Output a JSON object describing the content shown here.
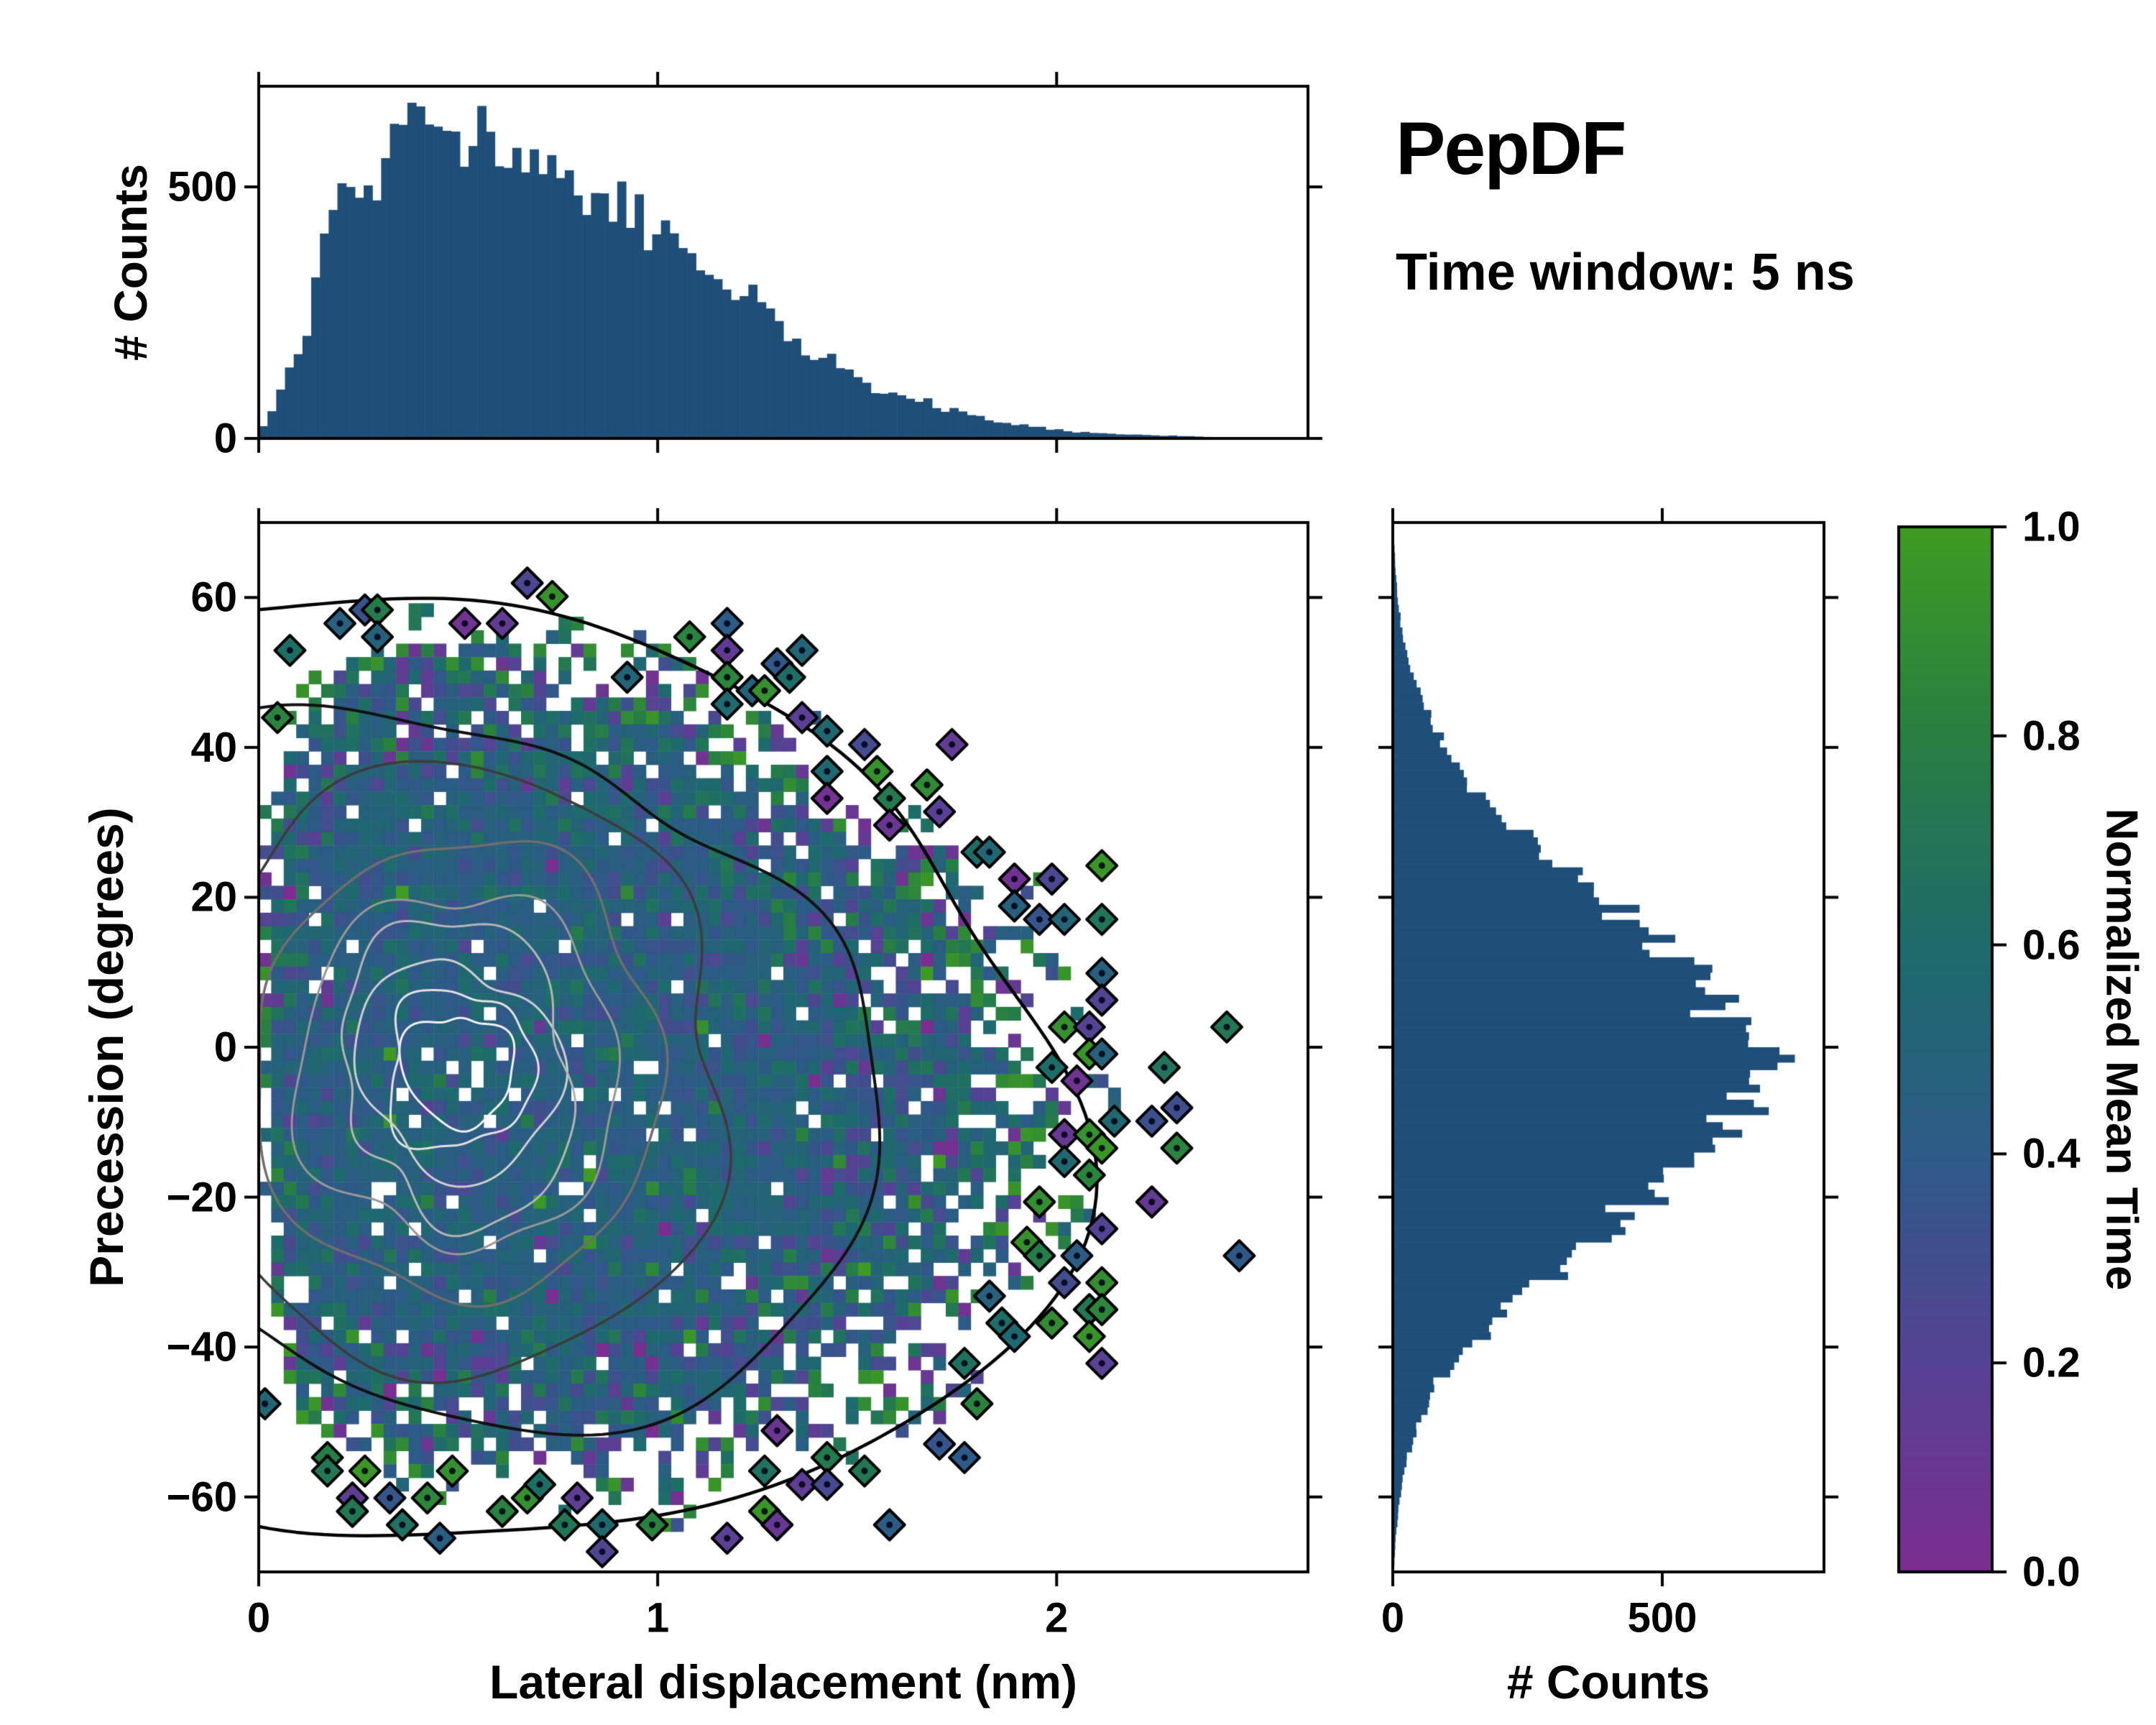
{
  "title": {
    "text": "PepDF",
    "subtitle": "Time window: 5 ns"
  },
  "colors": {
    "background": "#ffffff",
    "bar": "#1f4e79",
    "spine": "#000000"
  },
  "colormap": {
    "label": "Normalized Mean Time",
    "ticks": [
      "0.0",
      "0.2",
      "0.4",
      "0.6",
      "0.8",
      "1.0"
    ],
    "stops": [
      {
        "t": 0.0,
        "c": "#7b2d90"
      },
      {
        "t": 0.2,
        "c": "#564294"
      },
      {
        "t": 0.4,
        "c": "#2d5a87"
      },
      {
        "t": 0.6,
        "c": "#1d6b6b"
      },
      {
        "t": 0.8,
        "c": "#277f42"
      },
      {
        "t": 1.0,
        "c": "#3f9b22"
      }
    ]
  },
  "chart_data": [
    {
      "type": "bar",
      "name": "lateral-displacement-marginal-histogram",
      "orientation": "vertical",
      "ylabel": "# Counts",
      "xlim": [
        0,
        2.63
      ],
      "ylim": [
        0,
        700
      ],
      "yticks": [
        0,
        500
      ],
      "xticks": [
        0,
        1,
        2
      ],
      "bins": 120,
      "peak": 660,
      "envelope": [
        [
          0,
          10
        ],
        [
          0.05,
          80
        ],
        [
          0.1,
          185
        ],
        [
          0.15,
          310
        ],
        [
          0.2,
          430
        ],
        [
          0.25,
          515
        ],
        [
          0.3,
          565
        ],
        [
          0.35,
          610
        ],
        [
          0.42,
          660
        ],
        [
          0.5,
          625
        ],
        [
          0.6,
          575
        ],
        [
          0.7,
          550
        ],
        [
          0.8,
          525
        ],
        [
          0.9,
          490
        ],
        [
          1.0,
          445
        ],
        [
          1.1,
          370
        ],
        [
          1.2,
          285
        ],
        [
          1.3,
          215
        ],
        [
          1.4,
          160
        ],
        [
          1.5,
          115
        ],
        [
          1.6,
          85
        ],
        [
          1.7,
          62
        ],
        [
          1.8,
          45
        ],
        [
          1.9,
          26
        ],
        [
          2.0,
          17
        ],
        [
          2.1,
          11
        ],
        [
          2.2,
          7
        ],
        [
          2.3,
          5
        ],
        [
          2.4,
          3
        ],
        [
          2.5,
          2
        ],
        [
          2.63,
          1
        ]
      ]
    },
    {
      "type": "heatmap",
      "name": "precession-vs-lateral-displacement",
      "xlabel": "Lateral displacement (nm)",
      "ylabel": "Precession (degrees)",
      "xlim": [
        0,
        2.63
      ],
      "ylim": [
        -70,
        70
      ],
      "xticks": [
        0,
        1,
        2
      ],
      "yticks": [
        -60,
        -40,
        -20,
        0,
        20,
        40,
        60
      ],
      "grid": [
        84,
        78
      ],
      "peak_bin_count": 36,
      "mean_value": 0.46,
      "value_meaning": "normalized mean time, mapped through colormap 0-1",
      "contours": {
        "center": [
          0.5,
          -3
        ],
        "levels": [
          {
            "rx": 0.13,
            "ry": 8,
            "amp": 0.18,
            "lw": 3,
            "color": "#f2f2f2"
          },
          {
            "rx": 0.18,
            "ry": 11,
            "amp": 0.17,
            "lw": 3,
            "color": "#e2e2e2"
          },
          {
            "rx": 0.24,
            "ry": 15,
            "amp": 0.16,
            "lw": 3,
            "color": "#cfcfcf"
          },
          {
            "rx": 0.31,
            "ry": 19,
            "amp": 0.15,
            "lw": 3,
            "color": "#b5b5b5"
          },
          {
            "rx": 0.4,
            "ry": 24,
            "amp": 0.14,
            "lw": 3,
            "color": "#979797"
          },
          {
            "rx": 0.52,
            "ry": 30,
            "amp": 0.13,
            "lw": 3.5,
            "color": "#6e6e6e"
          },
          {
            "rx": 0.72,
            "ry": 38,
            "amp": 0.12,
            "lw": 3.5,
            "color": "#3c3c3c"
          },
          {
            "rx": 1.02,
            "ry": 48,
            "amp": 0.11,
            "lw": 4,
            "color": "#111111"
          },
          {
            "rx": 1.5,
            "ry": 63,
            "amp": 0.11,
            "lw": 4.5,
            "color": "#000000"
          }
        ]
      }
    },
    {
      "type": "bar",
      "name": "precession-marginal-histogram",
      "orientation": "horizontal",
      "xlabel": "# Counts",
      "xlim": [
        0,
        800
      ],
      "xticks": [
        0,
        500
      ],
      "ylim": [
        -70,
        70
      ],
      "bins": 140,
      "peak": 680,
      "envelope": [
        [
          -70,
          2
        ],
        [
          -65,
          6
        ],
        [
          -60,
          13
        ],
        [
          -55,
          26
        ],
        [
          -50,
          50
        ],
        [
          -45,
          85
        ],
        [
          -40,
          140
        ],
        [
          -35,
          210
        ],
        [
          -30,
          300
        ],
        [
          -25,
          400
        ],
        [
          -20,
          480
        ],
        [
          -15,
          555
        ],
        [
          -10,
          620
        ],
        [
          -5,
          665
        ],
        [
          -2,
          680
        ],
        [
          0,
          670
        ],
        [
          5,
          630
        ],
        [
          10,
          560
        ],
        [
          15,
          480
        ],
        [
          20,
          390
        ],
        [
          25,
          300
        ],
        [
          30,
          220
        ],
        [
          35,
          150
        ],
        [
          40,
          95
        ],
        [
          45,
          60
        ],
        [
          50,
          35
        ],
        [
          55,
          18
        ],
        [
          60,
          9
        ],
        [
          65,
          4
        ],
        [
          70,
          1
        ]
      ]
    }
  ],
  "render": {
    "seed": 1337,
    "cell_scale": 1.45,
    "bar_noise": 0.07,
    "hole_cap": 0.96,
    "diamond_radius": 21
  }
}
